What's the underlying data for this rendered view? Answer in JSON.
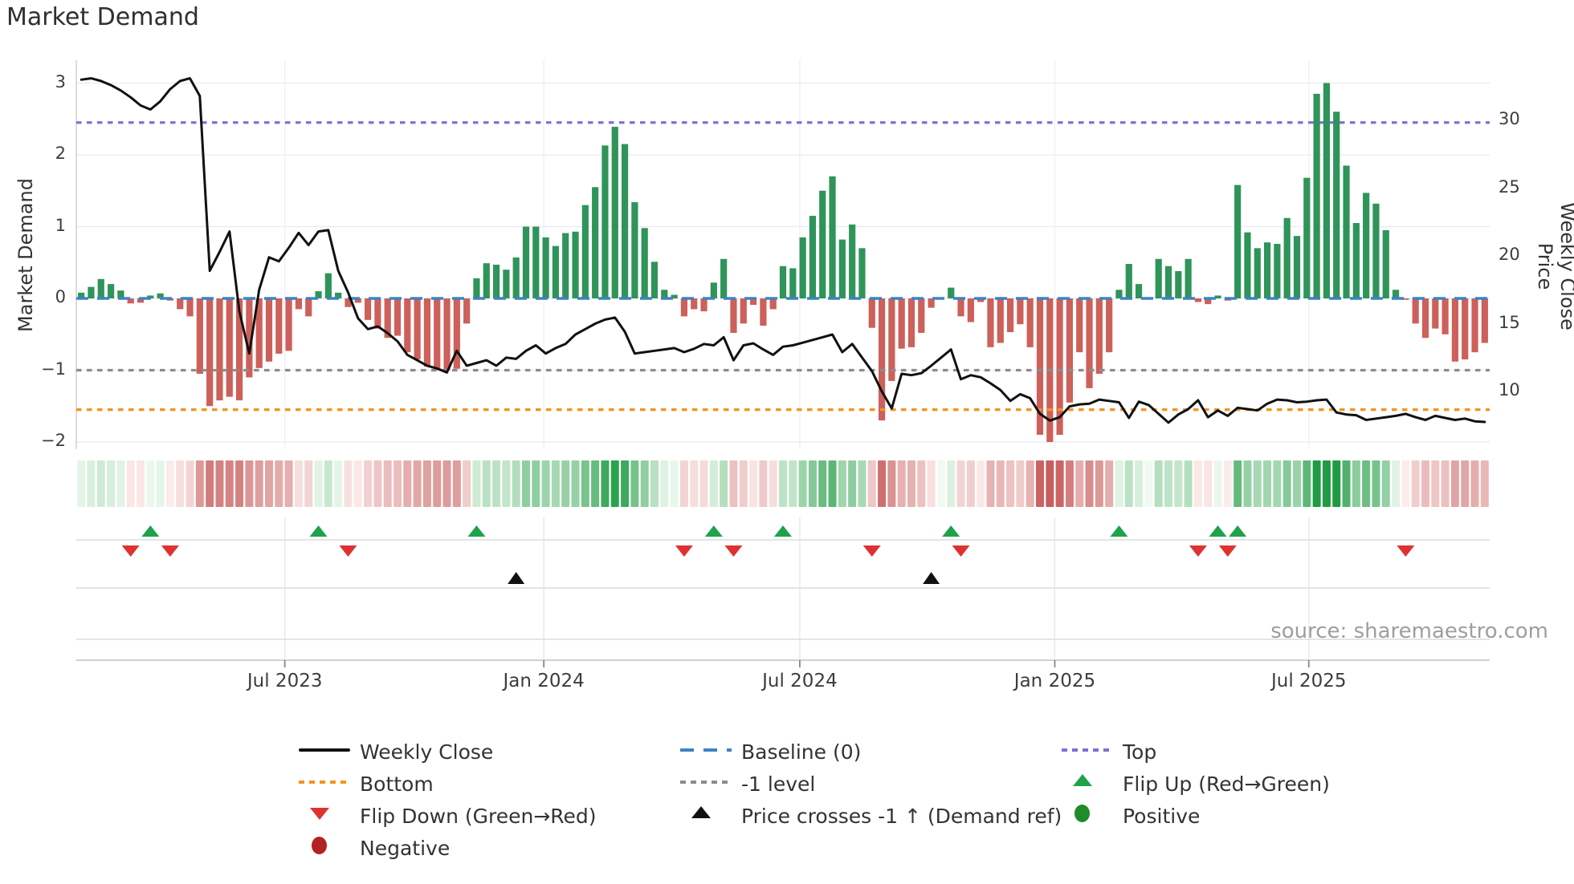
{
  "title": "Market Demand",
  "source_note": "source: sharemaestro.com",
  "axes": {
    "left_title": "Market Demand",
    "right_title": "Weekly Close Price",
    "left_ticks": [
      {
        "label": "3",
        "value": 3
      },
      {
        "label": "2",
        "value": 2
      },
      {
        "label": "1",
        "value": 1
      },
      {
        "label": "0",
        "value": 0
      },
      {
        "label": "−1",
        "value": -1
      },
      {
        "label": "−2",
        "value": -2
      }
    ],
    "right_ticks": [
      {
        "label": "30",
        "value": 30
      },
      {
        "label": "25",
        "value": 25
      },
      {
        "label": "20",
        "value": 20
      },
      {
        "label": "15",
        "value": 15
      },
      {
        "label": "10",
        "value": 10
      }
    ],
    "x_ticks": [
      {
        "label": "Jul 2023",
        "week": 20.6
      },
      {
        "label": "Jan 2024",
        "week": 46.8
      },
      {
        "label": "Jul 2024",
        "week": 72.7
      },
      {
        "label": "Jan 2025",
        "week": 98.5
      },
      {
        "label": "Jul 2025",
        "week": 124.2
      }
    ]
  },
  "colors": {
    "green_bar": "#2f9459",
    "red_bar": "#cd605a",
    "baseline": "#3d82c4",
    "top_line": "#7e70d6",
    "bottom_line": "#f5941f",
    "minus1_line": "#8c8c8c",
    "price_line": "#111111",
    "flip_up": "#1ea34a",
    "flip_down": "#e03131",
    "price_cross": "#111111",
    "positive": "#1e8c28",
    "negative": "#b22222",
    "grid": "#e9e9f2",
    "grid_vertical": "#efeff5",
    "panel_grid": "#dcdcdc",
    "spine": "#d0d0d0"
  },
  "legend": [
    {
      "label": "Weekly Close",
      "icon": "line",
      "color": "#111111",
      "col": 0,
      "row": 0
    },
    {
      "label": "Bottom",
      "icon": "dots",
      "color": "#f5941f",
      "col": 0,
      "row": 1
    },
    {
      "label": "Flip Down (Green→Red)",
      "icon": "tri-down",
      "color": "#e03131",
      "col": 0,
      "row": 2
    },
    {
      "label": "Negative",
      "icon": "circle",
      "color": "#b22222",
      "col": 0,
      "row": 3
    },
    {
      "label": "Baseline (0)",
      "icon": "dash",
      "color": "#3d82c4",
      "col": 1,
      "row": 0
    },
    {
      "label": "-1 level",
      "icon": "dots",
      "color": "#8c8c8c",
      "col": 1,
      "row": 1
    },
    {
      "label": "Price crosses -1 ↑ (Demand ref)",
      "icon": "tri-up",
      "color": "#111111",
      "col": 1,
      "row": 2
    },
    {
      "label": "Top",
      "icon": "dots",
      "color": "#7e70d6",
      "col": 2,
      "row": 0
    },
    {
      "label": "Flip Up (Red→Green)",
      "icon": "tri-up",
      "color": "#1ea34a",
      "col": 2,
      "row": 1
    },
    {
      "label": "Positive",
      "icon": "circle",
      "color": "#1e8c28",
      "col": 2,
      "row": 2
    }
  ],
  "chart_data": {
    "type": [
      "bar",
      "line",
      "heatmap"
    ],
    "title": "Market Demand",
    "x_unit": "week_index",
    "n_weeks": 143,
    "xlabel_ticks": [
      "Jul 2023",
      "Jan 2024",
      "Jul 2024",
      "Jan 2025",
      "Jul 2025"
    ],
    "ylabel_left": "Market Demand",
    "ylabel_right": "Weekly Close Price",
    "ylim_left": [
      -2.1,
      3.32
    ],
    "right_axis_tick_range": [
      10,
      30
    ],
    "baseline": 0,
    "top_level": 2.45,
    "bottom_level": -1.55,
    "minus1_level": -1,
    "demand_bars": [
      0.08,
      0.16,
      0.27,
      0.2,
      0.11,
      -0.07,
      -0.06,
      0.04,
      0.07,
      -0.03,
      -0.15,
      -0.25,
      -1.05,
      -1.5,
      -1.42,
      -1.37,
      -1.42,
      -1.1,
      -0.97,
      -0.88,
      -0.77,
      -0.73,
      -0.15,
      -0.25,
      0.1,
      0.35,
      0.08,
      -0.12,
      -0.06,
      -0.3,
      -0.42,
      -0.55,
      -0.52,
      -0.75,
      -0.85,
      -0.95,
      -1.0,
      -1.0,
      -0.98,
      -0.35,
      0.28,
      0.49,
      0.47,
      0.4,
      0.57,
      1.0,
      1.0,
      0.85,
      0.73,
      0.91,
      0.93,
      1.3,
      1.55,
      2.13,
      2.39,
      2.15,
      1.34,
      0.98,
      0.51,
      0.12,
      0.05,
      -0.25,
      -0.15,
      -0.18,
      0.22,
      0.55,
      -0.48,
      -0.35,
      -0.09,
      -0.38,
      -0.15,
      0.45,
      0.42,
      0.85,
      1.15,
      1.5,
      1.7,
      0.82,
      1.03,
      0.7,
      -0.41,
      -1.7,
      -1.15,
      -0.7,
      -0.68,
      -0.48,
      -0.13,
      0.0,
      0.15,
      -0.25,
      -0.33,
      -0.05,
      -0.68,
      -0.62,
      -0.47,
      -0.36,
      -0.68,
      -1.9,
      -2.0,
      -1.9,
      -1.45,
      -0.75,
      -1.25,
      -1.05,
      -0.75,
      0.12,
      0.48,
      0.2,
      0.0,
      0.55,
      0.45,
      0.38,
      0.55,
      -0.05,
      -0.08,
      0.04,
      -0.03,
      1.58,
      0.92,
      0.7,
      0.78,
      0.76,
      1.12,
      0.87,
      1.68,
      2.85,
      3.0,
      2.6,
      1.85,
      1.05,
      1.47,
      1.32,
      0.95,
      0.12,
      -0.02,
      -0.35,
      -0.55,
      -0.42,
      -0.5,
      -0.88,
      -0.85,
      -0.75,
      -0.62
    ],
    "weekly_close_price": [
      33.0,
      33.1,
      32.9,
      32.6,
      32.2,
      31.7,
      31.1,
      30.8,
      31.4,
      32.3,
      32.9,
      33.1,
      31.8,
      18.9,
      20.3,
      21.8,
      15.9,
      12.8,
      17.5,
      19.9,
      19.6,
      20.6,
      21.7,
      20.8,
      21.8,
      21.9,
      18.9,
      17.3,
      15.4,
      14.6,
      14.8,
      14.3,
      13.7,
      12.7,
      12.3,
      11.9,
      11.7,
      11.4,
      13.0,
      11.9,
      12.1,
      12.3,
      11.9,
      12.5,
      12.4,
      13.0,
      13.4,
      12.8,
      13.2,
      13.5,
      14.2,
      14.6,
      15.0,
      15.3,
      15.45,
      14.4,
      12.8,
      12.9,
      13.0,
      13.1,
      13.2,
      12.9,
      13.15,
      13.5,
      13.4,
      14.0,
      12.3,
      13.4,
      13.55,
      13.1,
      12.7,
      13.3,
      13.4,
      13.6,
      13.8,
      14.0,
      14.2,
      12.9,
      13.5,
      12.5,
      11.5,
      10.0,
      8.75,
      11.3,
      11.2,
      11.35,
      11.9,
      12.5,
      13.1,
      10.9,
      11.2,
      11.05,
      10.6,
      10.1,
      9.3,
      9.8,
      9.5,
      8.35,
      7.85,
      8.1,
      8.9,
      9.05,
      9.1,
      9.4,
      9.3,
      9.2,
      8.05,
      9.25,
      9.0,
      8.35,
      7.7,
      8.3,
      8.7,
      9.35,
      8.1,
      8.6,
      8.2,
      8.8,
      8.7,
      8.6,
      9.1,
      9.4,
      9.35,
      9.2,
      9.25,
      9.35,
      9.4,
      8.45,
      8.3,
      8.25,
      7.9,
      8.0,
      8.1,
      8.2,
      8.35,
      8.1,
      7.9,
      8.2,
      8.05,
      7.9,
      8.0,
      7.8,
      7.75
    ],
    "heatmap_source": "demand_bars",
    "flip_up_weeks": [
      7,
      24,
      40,
      64,
      71,
      88,
      105,
      115,
      117
    ],
    "flip_down_weeks": [
      5,
      9,
      27,
      61,
      66,
      80,
      89,
      113,
      116,
      134
    ],
    "price_cross_weeks": [
      44,
      86
    ],
    "legend_entries": [
      "Weekly Close",
      "Baseline (0)",
      "Top",
      "Bottom",
      "-1 level",
      "Flip Up (Red→Green)",
      "Flip Down (Green→Red)",
      "Price crosses -1 ↑ (Demand ref)",
      "Positive",
      "Negative"
    ],
    "grid": true,
    "legend_position": "bottom"
  }
}
